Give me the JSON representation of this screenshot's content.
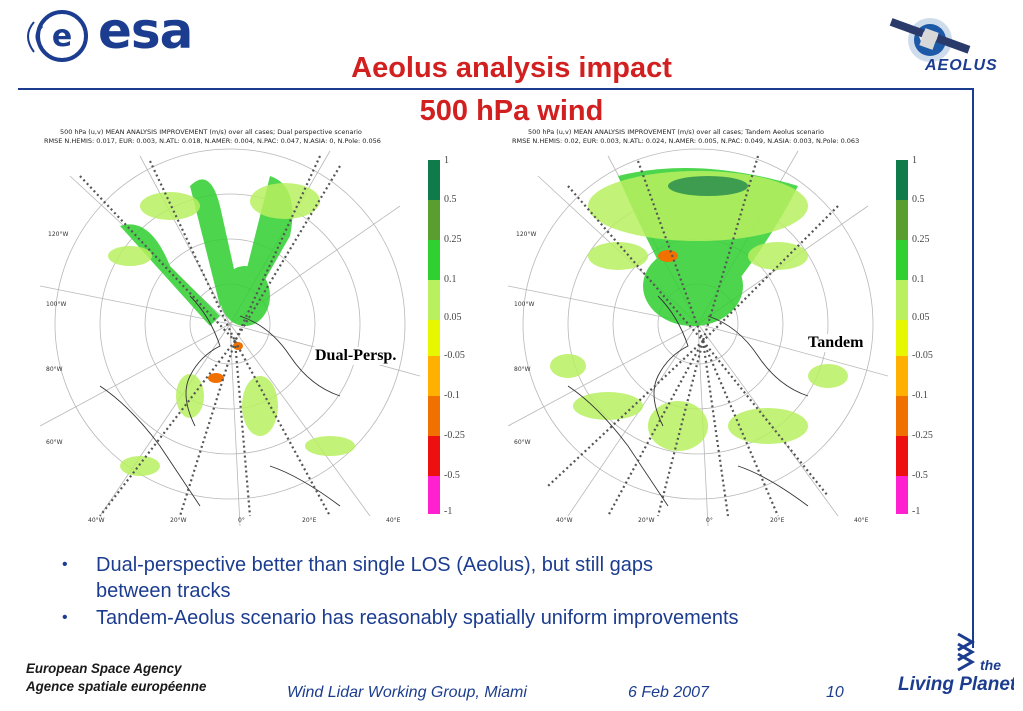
{
  "header": {
    "esa_logo_text": "esa",
    "title_line1": "Aeolus analysis impact",
    "title_line2": "500 hPa wind",
    "aeolus_logo_text": "AEOLUS"
  },
  "maps": [
    {
      "caption_line1": "500 hPa (u,v) MEAN ANALYSIS IMPROVEMENT (m/s) over all cases; Dual perspective scenario",
      "caption_line2": "RMSE N.HEMIS: 0.017,  EUR: 0.003,  N.ATL: 0.018,  N.AMER: 0.004,  N.PAC: 0.047,  N.ASIA: 0,  N.Pole: 0.056",
      "panel_label": "Dual-Persp.",
      "lon_labels": [
        "40°W",
        "20°W",
        "0°",
        "20°E",
        "40°E"
      ],
      "side_labels": [
        "120°W",
        "100°W",
        "80°W",
        "60°W"
      ]
    },
    {
      "caption_line1": "500 hPa (u,v) MEAN ANALYSIS IMPROVEMENT (m/s) over all cases; Tandem Aeolus scenario",
      "caption_line2": "RMSE N.HEMIS: 0.02,  EUR: 0.003,  N.ATL: 0.024,  N.AMER: 0.005,  N.PAC: 0.049,  N.ASIA: 0.003,  N.Pole: 0.063",
      "panel_label": "Tandem",
      "lon_labels": [
        "40°W",
        "20°W",
        "0°",
        "20°E",
        "40°E"
      ],
      "side_labels": [
        "120°W",
        "100°W",
        "80°W",
        "60°W"
      ]
    }
  ],
  "colorbar": {
    "segments": [
      {
        "color": "#0f7a4a",
        "label": "1"
      },
      {
        "color": "#5a9e2f",
        "label": "0.5"
      },
      {
        "color": "#2fd02f",
        "label": "0.25"
      },
      {
        "color": "#b8f060",
        "label": "0.1"
      },
      {
        "color": "#e6f700",
        "label": "0.05"
      },
      {
        "color": "#ffffff",
        "label": "-0.05"
      },
      {
        "color": "#ffb000",
        "label": "-0.1"
      },
      {
        "color": "#f07000",
        "label": "-0.25"
      },
      {
        "color": "#ee1010",
        "label": "-0.5"
      },
      {
        "color": "#ff20d0",
        "label": "-1"
      }
    ]
  },
  "bullets": [
    {
      "line1": "Dual-perspective better than single LOS (Aeolus), but still gaps",
      "line2": "between tracks"
    },
    {
      "line1": "Tandem-Aeolus scenario has reasonably spatially uniform improvements",
      "line2": ""
    }
  ],
  "footer": {
    "agency_en": "European Space Agency",
    "agency_fr": "Agence spatiale européenne",
    "group": "Wind Lidar Working Group, Miami",
    "date": "6 Feb 2007",
    "page": "10",
    "living_planet_line1": "the",
    "living_planet_line2": "Living Planet"
  }
}
